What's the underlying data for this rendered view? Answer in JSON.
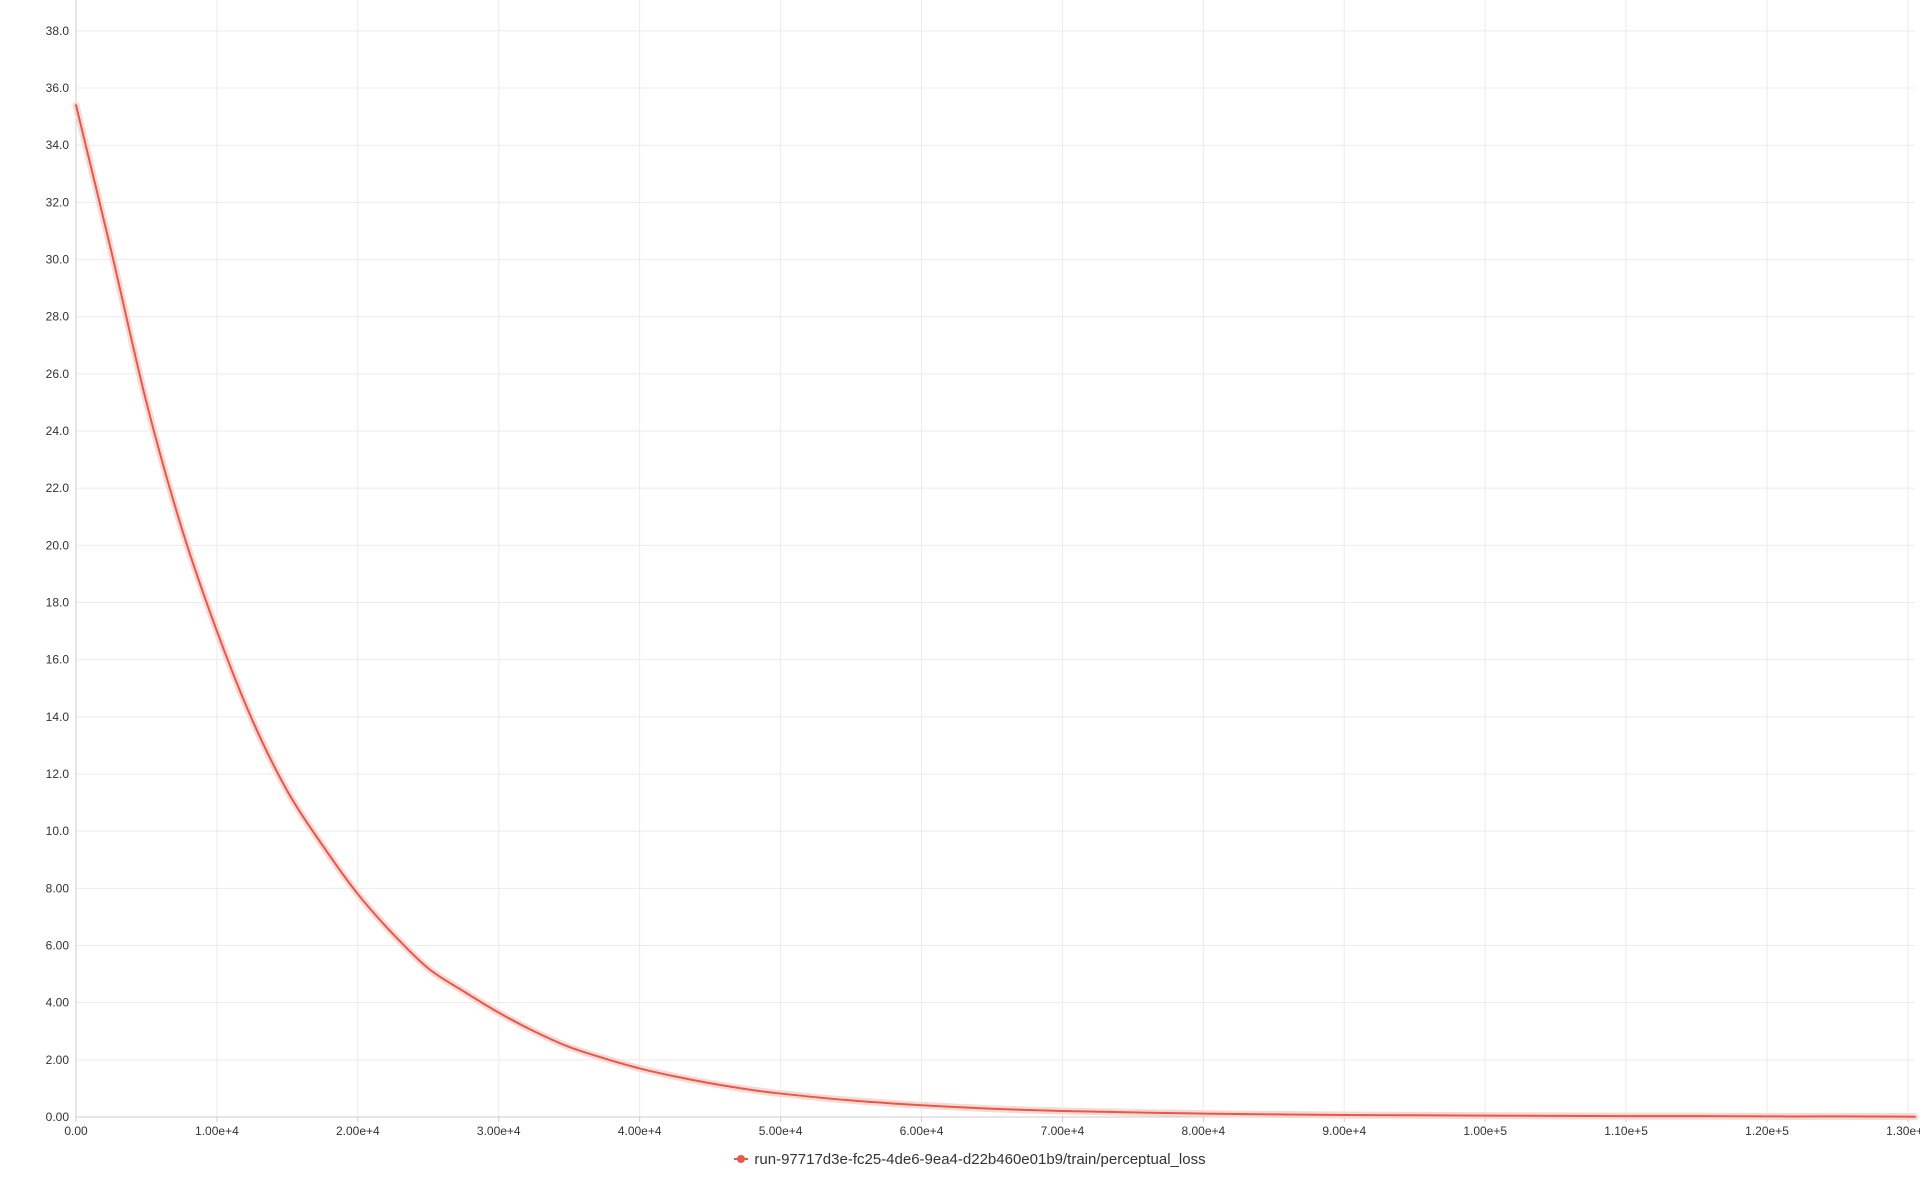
{
  "chart_data": {
    "type": "line",
    "title": "",
    "xlabel": "",
    "ylabel": "",
    "xlim": [
      0,
      130500
    ],
    "ylim": [
      0,
      38.8
    ],
    "grid": true,
    "legend_position": "bottom-center",
    "x_ticks": [
      0,
      10000,
      20000,
      30000,
      40000,
      50000,
      60000,
      70000,
      80000,
      90000,
      100000,
      110000,
      120000,
      130000
    ],
    "x_tick_labels": [
      "0.00",
      "1.00e+4",
      "2.00e+4",
      "3.00e+4",
      "4.00e+4",
      "5.00e+4",
      "6.00e+4",
      "7.00e+4",
      "8.00e+4",
      "9.00e+4",
      "1.00e+5",
      "1.10e+5",
      "1.20e+5",
      "1.30e+5"
    ],
    "y_ticks": [
      0,
      2,
      4,
      6,
      8,
      10,
      12,
      14,
      16,
      18,
      20,
      22,
      24,
      26,
      28,
      30,
      32,
      34,
      36,
      38
    ],
    "y_tick_labels": [
      "0.00",
      "2.00",
      "4.00",
      "6.00",
      "8.00",
      "10.0",
      "12.0",
      "14.0",
      "16.0",
      "18.0",
      "20.0",
      "22.0",
      "24.0",
      "26.0",
      "28.0",
      "30.0",
      "32.0",
      "34.0",
      "36.0",
      "38.0"
    ],
    "series": [
      {
        "name": "run-97717d3e-fc25-4de6-9ea4-d22b460e01b9/train/perceptual_loss",
        "color": "#e8584a",
        "band_color": "#f6d6d1",
        "x": [
          0,
          2500,
          5000,
          7500,
          10000,
          12500,
          15000,
          17500,
          20000,
          22500,
          25000,
          27500,
          30000,
          32500,
          35000,
          37500,
          40000,
          42500,
          45000,
          47500,
          50000,
          55000,
          60000,
          65000,
          70000,
          75000,
          80000,
          85000,
          90000,
          95000,
          100000,
          105000,
          110000,
          115000,
          120000,
          125000,
          130500
        ],
        "y": [
          35.4,
          30.3,
          25.0,
          20.6,
          17.0,
          13.9,
          11.4,
          9.5,
          7.8,
          6.4,
          5.2,
          4.4,
          3.65,
          3.0,
          2.45,
          2.05,
          1.7,
          1.42,
          1.18,
          0.98,
          0.82,
          0.58,
          0.41,
          0.29,
          0.21,
          0.16,
          0.12,
          0.09,
          0.07,
          0.06,
          0.05,
          0.04,
          0.03,
          0.03,
          0.02,
          0.02,
          0.01
        ]
      }
    ]
  }
}
